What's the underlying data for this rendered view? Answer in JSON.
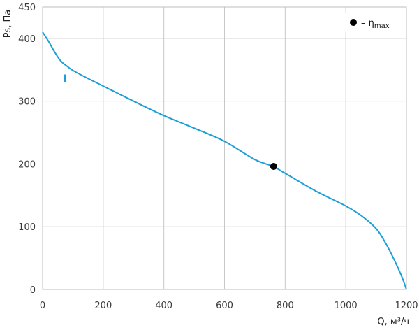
{
  "chart_data": {
    "type": "line",
    "xlabel": "Q, м³/ч",
    "ylabel": "Ps, Па",
    "xlim": [
      0,
      1200
    ],
    "ylim": [
      0,
      450
    ],
    "x_ticks": [
      0,
      200,
      400,
      600,
      800,
      1000,
      1200
    ],
    "y_ticks": [
      0,
      100,
      200,
      300,
      400,
      450
    ],
    "grid": true,
    "colors": {
      "curve": "#1a9fd9",
      "grid": "#c8c8c8",
      "frame": "#bdbdbd",
      "marker": "#000000"
    },
    "series": [
      {
        "name": "I",
        "x": [
          0,
          20,
          40,
          60,
          80,
          100,
          150,
          200,
          300,
          400,
          500,
          600,
          700,
          760,
          800,
          900,
          1000,
          1050,
          1100,
          1130,
          1160,
          1185,
          1200
        ],
        "y": [
          410,
          395,
          378,
          364,
          356,
          349,
          336,
          324,
          300,
          277,
          257,
          236,
          207,
          196,
          185,
          157,
          133,
          118,
          97,
          75,
          47,
          20,
          0
        ]
      }
    ],
    "marker_points": [
      {
        "x": 762,
        "y": 196
      }
    ],
    "legend": {
      "position": "top-right",
      "symbol": "filled-circle",
      "label_prefix": "– η",
      "label_sub": "max"
    }
  }
}
